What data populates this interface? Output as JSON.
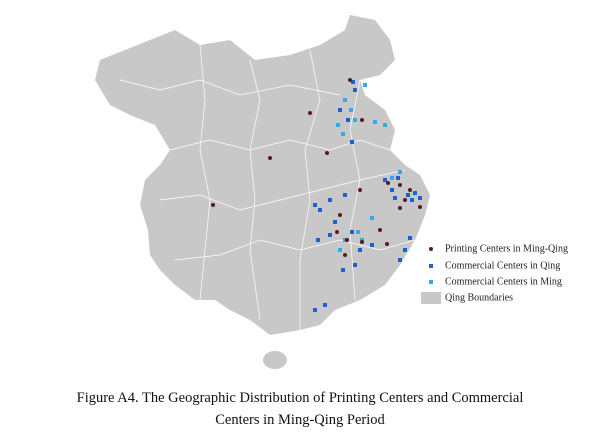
{
  "legend": {
    "items": [
      "Printing Centers in Ming-Qing",
      "Commercial Centers in Qing",
      "Commercial Centers in Ming",
      "Qing Boundaries"
    ]
  },
  "caption": {
    "lines": [
      "Figure A4. The Geographic Distribution of Printing Centers and Commercial",
      "Centers in Ming-Qing Period"
    ]
  }
}
